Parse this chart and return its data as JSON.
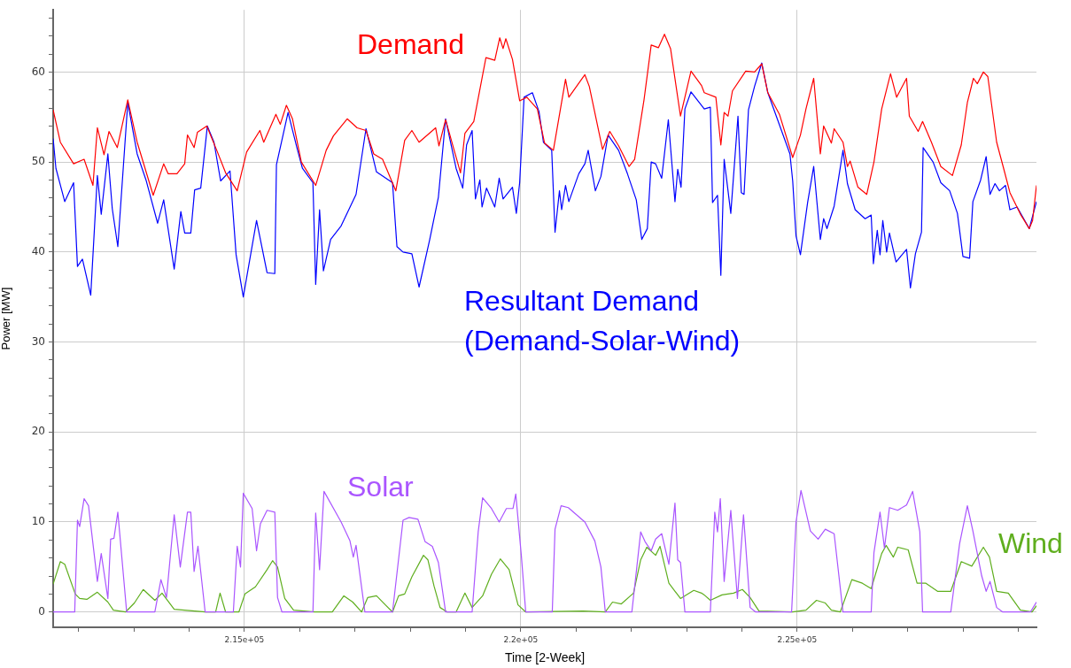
{
  "chart_data": {
    "type": "line",
    "xlabel": "Time [2-Week]",
    "ylabel": "Power [MW]",
    "xlim": [
      211540,
      229330
    ],
    "ylim": [
      -1.7,
      66.9
    ],
    "xticks": [
      {
        "value": 212000,
        "label": null
      },
      {
        "value": 213000,
        "label": null
      },
      {
        "value": 214000,
        "label": null
      },
      {
        "value": 215000,
        "label": "2.15e+05"
      },
      {
        "value": 216000,
        "label": null
      },
      {
        "value": 217000,
        "label": null
      },
      {
        "value": 218000,
        "label": null
      },
      {
        "value": 219000,
        "label": null
      },
      {
        "value": 220000,
        "label": "2.2e+05"
      },
      {
        "value": 221000,
        "label": null
      },
      {
        "value": 222000,
        "label": null
      },
      {
        "value": 223000,
        "label": null
      },
      {
        "value": 224000,
        "label": null
      },
      {
        "value": 225000,
        "label": "2.25e+05"
      },
      {
        "value": 226000,
        "label": null
      },
      {
        "value": 227000,
        "label": null
      },
      {
        "value": 228000,
        "label": null
      },
      {
        "value": 229000,
        "label": null
      }
    ],
    "yticks": [
      0,
      {
        "value": 2,
        "label": null
      },
      {
        "value": 4,
        "label": null
      },
      {
        "value": 6,
        "label": null
      },
      {
        "value": 8,
        "label": null
      },
      10,
      {
        "value": 12,
        "label": null
      },
      {
        "value": 14,
        "label": null
      },
      {
        "value": 16,
        "label": null
      },
      {
        "value": 18,
        "label": null
      },
      20,
      {
        "value": 22,
        "label": null
      },
      {
        "value": 24,
        "label": null
      },
      {
        "value": 26,
        "label": null
      },
      {
        "value": 28,
        "label": null
      },
      30,
      {
        "value": 32,
        "label": null
      },
      {
        "value": 34,
        "label": null
      },
      {
        "value": 36,
        "label": null
      },
      {
        "value": 38,
        "label": null
      },
      40,
      {
        "value": 42,
        "label": null
      },
      {
        "value": 44,
        "label": null
      },
      {
        "value": 46,
        "label": null
      },
      {
        "value": 48,
        "label": null
      },
      50,
      {
        "value": 52,
        "label": null
      },
      {
        "value": 54,
        "label": null
      },
      {
        "value": 56,
        "label": null
      },
      {
        "value": 58,
        "label": null
      },
      60,
      {
        "value": 62,
        "label": null
      },
      {
        "value": 64,
        "label": null
      },
      {
        "value": 66,
        "label": null
      }
    ],
    "grid": true,
    "legend": false,
    "marker": "none",
    "line_style": "solid",
    "series": [
      {
        "name": "Demand",
        "color": "#ff0000",
        "x": [
          211540,
          211670,
          211910,
          212100,
          212260,
          212340,
          212460,
          212550,
          212700,
          212890,
          213060,
          213350,
          213540,
          213620,
          213780,
          213920,
          213970,
          214090,
          214150,
          214320,
          214500,
          214660,
          214870,
          215040,
          215280,
          215350,
          215570,
          215650,
          215760,
          215870,
          216030,
          216290,
          216480,
          216610,
          216860,
          217040,
          217200,
          217340,
          217500,
          217740,
          217900,
          218030,
          218160,
          218460,
          218520,
          218640,
          218910,
          218990,
          219150,
          219370,
          219530,
          219620,
          219680,
          219730,
          219850,
          219980,
          220110,
          220300,
          220430,
          220590,
          220810,
          220870,
          221160,
          221240,
          221480,
          221610,
          221770,
          221960,
          222060,
          222230,
          222360,
          222490,
          222600,
          222710,
          222890,
          223080,
          223270,
          223320,
          223530,
          223620,
          223680,
          223750,
          223830,
          224070,
          224230,
          224360,
          224470,
          224680,
          224920,
          225060,
          225160,
          225300,
          225420,
          225480,
          225620,
          225670,
          225830,
          225910,
          225960,
          226100,
          226260,
          226390,
          226530,
          226690,
          226800,
          226980,
          227030,
          227190,
          227270,
          227430,
          227600,
          227810,
          227970,
          228080,
          228190,
          228260,
          228370,
          228450,
          228610,
          228740,
          228850,
          229040,
          229200,
          229260,
          229330
        ],
        "values": [
          55.8,
          52.2,
          49.8,
          50.3,
          47.4,
          53.8,
          50.8,
          53.4,
          51.6,
          56.9,
          52.2,
          46.3,
          49.8,
          48.7,
          48.7,
          49.8,
          53.0,
          51.6,
          53.3,
          54.0,
          51.3,
          48.8,
          46.8,
          51.1,
          53.5,
          52.2,
          55.3,
          54.2,
          56.3,
          54.8,
          50.0,
          47.4,
          51.3,
          52.9,
          54.8,
          53.8,
          53.5,
          50.9,
          50.3,
          46.8,
          52.4,
          53.5,
          52.2,
          53.8,
          51.8,
          54.7,
          48.8,
          53.2,
          54.5,
          61.6,
          61.3,
          63.8,
          62.6,
          63.7,
          61.4,
          56.8,
          57.2,
          55.9,
          52.1,
          51.3,
          59.2,
          57.2,
          59.7,
          58.4,
          51.4,
          53.4,
          51.8,
          49.5,
          50.3,
          56.9,
          63.0,
          62.7,
          64.2,
          62.6,
          55.1,
          60.1,
          58.5,
          57.7,
          57.2,
          51.9,
          55.5,
          55.1,
          57.9,
          60.1,
          60.0,
          60.9,
          57.7,
          55.3,
          50.5,
          53.0,
          55.9,
          59.3,
          50.9,
          54.0,
          52.1,
          53.7,
          52.2,
          49.5,
          50.1,
          47.2,
          46.4,
          50.0,
          55.9,
          59.8,
          57.2,
          59.3,
          55.1,
          53.4,
          54.5,
          52.2,
          49.5,
          48.5,
          51.9,
          56.6,
          59.3,
          58.7,
          60.0,
          59.5,
          52.2,
          49.2,
          46.6,
          44.2,
          42.6,
          43.5,
          47.4
        ]
      },
      {
        "name": "Resultant Demand (Demand-Solar-Wind)",
        "color": "#0000ff",
        "x": [
          211540,
          211590,
          211750,
          211910,
          211980,
          212070,
          212220,
          212340,
          212410,
          212530,
          212610,
          212710,
          212890,
          213060,
          213220,
          213430,
          213540,
          213730,
          213850,
          213920,
          214030,
          214100,
          214210,
          214330,
          214450,
          214570,
          214740,
          214850,
          214980,
          215220,
          215410,
          215550,
          215580,
          215790,
          215950,
          216050,
          216240,
          216290,
          216360,
          216430,
          216560,
          216750,
          217020,
          217200,
          217390,
          217680,
          217760,
          217870,
          218030,
          218160,
          218350,
          218510,
          218640,
          218830,
          218950,
          219020,
          219120,
          219180,
          219260,
          219300,
          219380,
          219530,
          219610,
          219680,
          219850,
          219920,
          219980,
          220060,
          220210,
          220330,
          220410,
          220560,
          220620,
          220700,
          220740,
          220810,
          220870,
          221050,
          221160,
          221220,
          221350,
          221450,
          221580,
          221770,
          221930,
          222090,
          222190,
          222290,
          222360,
          222440,
          222550,
          222670,
          222790,
          222840,
          222900,
          222970,
          223080,
          223320,
          223430,
          223470,
          223560,
          223620,
          223680,
          223800,
          223930,
          223990,
          224040,
          224120,
          224230,
          224360,
          224470,
          224870,
          224920,
          224980,
          225060,
          225190,
          225300,
          225420,
          225480,
          225540,
          225670,
          225830,
          225910,
          226050,
          226230,
          226340,
          226380,
          226450,
          226500,
          226550,
          226620,
          226670,
          226790,
          226980,
          227050,
          227140,
          227250,
          227280,
          227460,
          227600,
          227760,
          227900,
          228000,
          228120,
          228180,
          228320,
          228420,
          228490,
          228580,
          228660,
          228770,
          228850,
          228980,
          229200,
          229330
        ],
        "values": [
          52.6,
          49.3,
          45.6,
          47.7,
          38.4,
          39.2,
          35.2,
          48.5,
          44.2,
          50.9,
          44.8,
          40.6,
          56.6,
          50.9,
          48.0,
          43.2,
          45.8,
          38.1,
          44.5,
          42.1,
          42.1,
          46.9,
          47.1,
          54.0,
          52.2,
          47.9,
          49.0,
          39.7,
          35.0,
          43.5,
          37.7,
          37.6,
          49.7,
          55.5,
          51.6,
          49.3,
          47.7,
          36.4,
          44.7,
          37.9,
          41.4,
          42.9,
          46.4,
          53.7,
          48.9,
          47.7,
          40.6,
          40.0,
          39.8,
          36.1,
          41.3,
          46.1,
          54.8,
          49.3,
          47.1,
          51.9,
          53.5,
          45.9,
          48.0,
          45.0,
          47.1,
          45.0,
          48.2,
          45.9,
          47.2,
          44.3,
          47.7,
          57.2,
          57.7,
          55.6,
          52.2,
          51.3,
          42.2,
          46.8,
          44.7,
          47.4,
          45.6,
          48.7,
          49.8,
          51.3,
          46.8,
          48.4,
          53.0,
          51.3,
          48.7,
          45.8,
          41.4,
          42.6,
          50.0,
          49.8,
          48.2,
          54.7,
          45.6,
          49.2,
          47.2,
          55.9,
          57.8,
          55.9,
          56.1,
          45.5,
          46.3,
          37.4,
          50.3,
          44.3,
          55.1,
          46.6,
          46.4,
          55.8,
          58.4,
          61.0,
          57.7,
          50.9,
          47.9,
          41.8,
          39.7,
          45.5,
          49.5,
          41.4,
          43.7,
          42.6,
          45.1,
          51.3,
          47.6,
          44.7,
          43.7,
          44.1,
          38.7,
          42.4,
          39.7,
          43.5,
          40.0,
          42.1,
          38.9,
          40.3,
          36.0,
          39.8,
          42.2,
          51.6,
          50.0,
          47.7,
          46.8,
          44.3,
          39.5,
          39.3,
          45.6,
          48.0,
          50.6,
          46.4,
          47.6,
          46.8,
          47.4,
          44.7,
          45.0,
          42.6,
          45.6
        ]
      },
      {
        "name": "Solar",
        "color": "#aa55ff",
        "x": [
          211540,
          211930,
          211980,
          212020,
          212100,
          212180,
          212340,
          212410,
          212530,
          212580,
          212640,
          212710,
          212870,
          213380,
          213490,
          213590,
          213730,
          213840,
          213970,
          214030,
          214090,
          214160,
          214290,
          214800,
          214870,
          214930,
          214980,
          215140,
          215220,
          215290,
          215410,
          215550,
          215600,
          215680,
          216240,
          216290,
          216360,
          216440,
          216750,
          216910,
          216970,
          217020,
          217180,
          217680,
          217870,
          217980,
          218140,
          218270,
          218400,
          218510,
          218640,
          219120,
          219230,
          219310,
          219470,
          219610,
          219740,
          219860,
          219910,
          220010,
          220090,
          220570,
          220620,
          220730,
          220860,
          221160,
          221340,
          221450,
          221530,
          222010,
          222170,
          222250,
          222360,
          222440,
          222550,
          222680,
          222790,
          222840,
          222890,
          222970,
          223430,
          223510,
          223560,
          223610,
          223680,
          223800,
          223920,
          224030,
          224150,
          224250,
          224900,
          224980,
          225070,
          225240,
          225380,
          225510,
          225670,
          225830,
          226340,
          226390,
          226500,
          226580,
          226670,
          226820,
          226980,
          227090,
          227220,
          227270,
          227780,
          227940,
          228080,
          228180,
          228340,
          228420,
          228490,
          228610,
          228720,
          229220,
          229330
        ],
        "values": [
          0,
          0,
          10.2,
          9.5,
          12.6,
          11.8,
          3.4,
          6.5,
          1.5,
          8.1,
          8.2,
          11.1,
          0,
          0,
          3.6,
          1.6,
          10.8,
          5.0,
          11.1,
          11.1,
          4.5,
          7.3,
          0,
          0,
          7.3,
          5.0,
          13.2,
          11.5,
          6.8,
          9.8,
          11.3,
          11.1,
          1.6,
          0,
          0,
          11.0,
          4.7,
          13.4,
          10.0,
          7.9,
          6.1,
          7.4,
          0,
          0,
          10.2,
          10.5,
          10.3,
          7.8,
          7.3,
          5.5,
          0,
          0,
          8.9,
          12.7,
          11.5,
          10.0,
          11.5,
          11.5,
          13.1,
          6.3,
          0,
          0,
          9.2,
          11.8,
          11.6,
          10.0,
          7.9,
          5.0,
          0,
          0,
          8.9,
          7.8,
          6.8,
          8.1,
          8.7,
          5.3,
          12.1,
          5.8,
          5.5,
          0,
          0,
          11.1,
          8.9,
          12.6,
          3.4,
          11.3,
          1.5,
          10.8,
          0.5,
          0,
          0,
          10.0,
          13.5,
          9.0,
          8.1,
          9.2,
          8.7,
          0,
          0,
          6.6,
          11.1,
          7.1,
          11.6,
          11.3,
          11.9,
          13.4,
          8.9,
          0,
          0,
          7.6,
          11.8,
          9.0,
          4.0,
          2.3,
          3.4,
          0.5,
          0,
          0,
          1.1
        ]
      },
      {
        "name": "Wind",
        "color": "#5fae1e",
        "x": [
          211540,
          211670,
          211750,
          211940,
          212020,
          212150,
          212340,
          212530,
          212630,
          212850,
          213010,
          213170,
          213380,
          213510,
          213730,
          214290,
          214480,
          214560,
          214660,
          214900,
          215010,
          215200,
          215410,
          215510,
          215600,
          215730,
          215890,
          216270,
          216590,
          216800,
          216960,
          217120,
          217230,
          217390,
          217550,
          217680,
          217790,
          217900,
          218030,
          218240,
          218320,
          218430,
          218540,
          218670,
          218830,
          218990,
          219120,
          219310,
          219470,
          219630,
          219790,
          219950,
          220090,
          221130,
          221530,
          221660,
          221820,
          222040,
          222170,
          222280,
          222440,
          222520,
          222680,
          222890,
          223130,
          223270,
          223320,
          223430,
          223640,
          223850,
          224010,
          224150,
          224310,
          224920,
          225160,
          225350,
          225510,
          225620,
          225780,
          225990,
          226180,
          226340,
          226530,
          226610,
          226740,
          226820,
          227010,
          227170,
          227330,
          227540,
          227780,
          227970,
          228160,
          228370,
          228480,
          228610,
          228820,
          229040,
          229250,
          229330
        ],
        "values": [
          3.1,
          5.6,
          5.3,
          2.0,
          1.5,
          1.4,
          2.2,
          1.1,
          0.2,
          0,
          1.0,
          2.5,
          1.3,
          2.1,
          0.3,
          0,
          0,
          2.1,
          0,
          0,
          2.0,
          2.8,
          4.7,
          5.7,
          5.0,
          1.5,
          0.2,
          0,
          0,
          1.8,
          1.1,
          0,
          1.6,
          1.8,
          0.8,
          0,
          1.8,
          2.0,
          3.9,
          6.3,
          5.8,
          2.9,
          0.5,
          0,
          0,
          2.1,
          0.5,
          1.8,
          4.2,
          5.9,
          4.7,
          0.8,
          0,
          0.1,
          0,
          1.1,
          0.9,
          2.1,
          5.8,
          7.2,
          6.3,
          7.3,
          3.2,
          1.5,
          2.4,
          2.1,
          1.9,
          1.3,
          1.9,
          2.1,
          2.5,
          1.6,
          0.1,
          0,
          0.2,
          1.3,
          1.0,
          0.2,
          0,
          3.6,
          3.2,
          2.6,
          6.5,
          7.4,
          6.1,
          7.2,
          6.9,
          3.2,
          3.2,
          2.3,
          2.3,
          5.6,
          5.1,
          7.2,
          6.1,
          2.3,
          2.1,
          0.2,
          0,
          0.7
        ]
      }
    ]
  }
}
